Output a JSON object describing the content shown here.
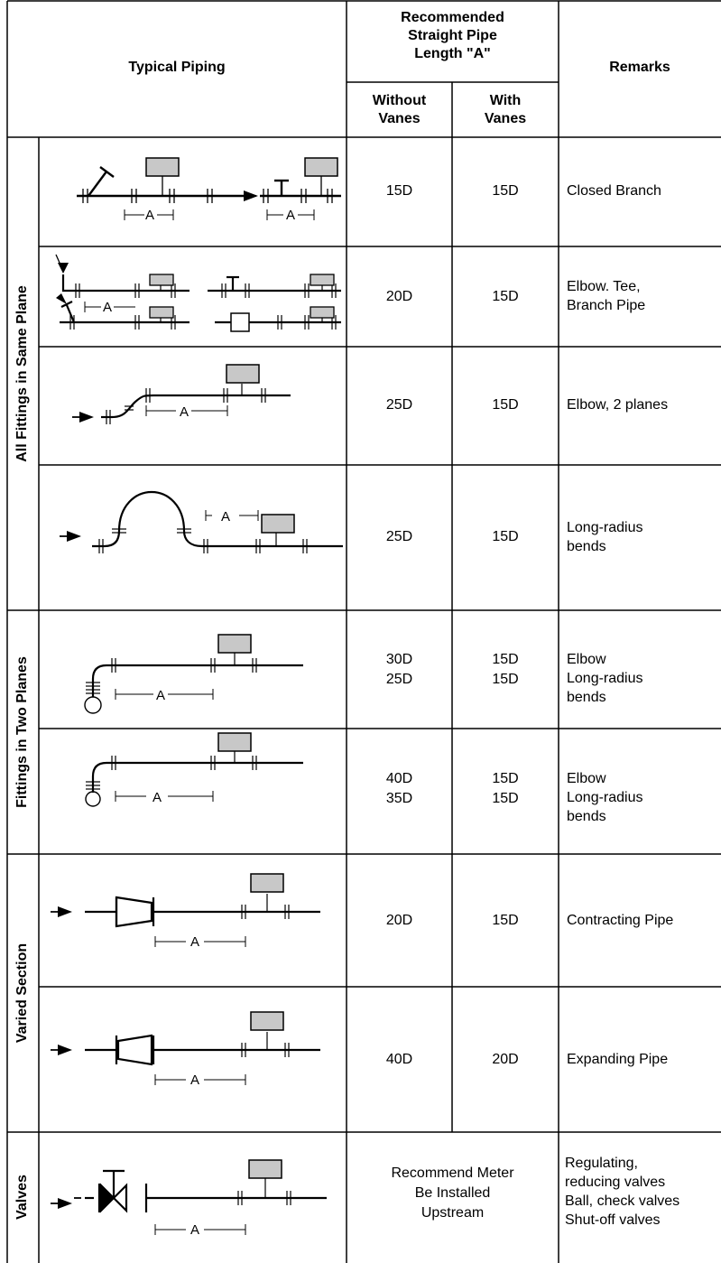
{
  "headers": {
    "typical_piping": "Typical Piping",
    "recommended": "Recommended\nStraight Pipe\nLength \"A\"",
    "without_vanes": "Without\nVanes",
    "with_vanes": "With\nVanes",
    "remarks": "Remarks"
  },
  "groups": [
    {
      "label": "All Fittings in Same Plane"
    },
    {
      "label": "Fittings in Two Planes"
    },
    {
      "label": "Varied Section"
    },
    {
      "label": "Valves"
    }
  ],
  "dimension_label": "A",
  "rows": [
    {
      "without": "15D",
      "with": "15D",
      "remarks": "Closed Branch"
    },
    {
      "without": "20D",
      "with": "15D",
      "remarks": "Elbow. Tee,\nBranch Pipe"
    },
    {
      "without": "25D",
      "with": "15D",
      "remarks": "Elbow, 2 planes"
    },
    {
      "without": "25D",
      "with": "15D",
      "remarks": "Long-radius\nbends"
    },
    {
      "without": "30D\n25D",
      "with": "15D\n15D",
      "remarks": "Elbow\nLong-radius\nbends"
    },
    {
      "without": "40D\n35D",
      "with": "15D\n15D",
      "remarks": "Elbow\nLong-radius\nbends"
    },
    {
      "without": "20D",
      "with": "15D",
      "remarks": "Contracting Pipe"
    },
    {
      "without": "40D",
      "with": "20D",
      "remarks": "Expanding Pipe"
    },
    {
      "merged": "Recommend Meter\nBe Installed\nUpstream",
      "remarks": "Regulating,\nreducing valves\nBall, check valves\nShut-off valves"
    }
  ]
}
